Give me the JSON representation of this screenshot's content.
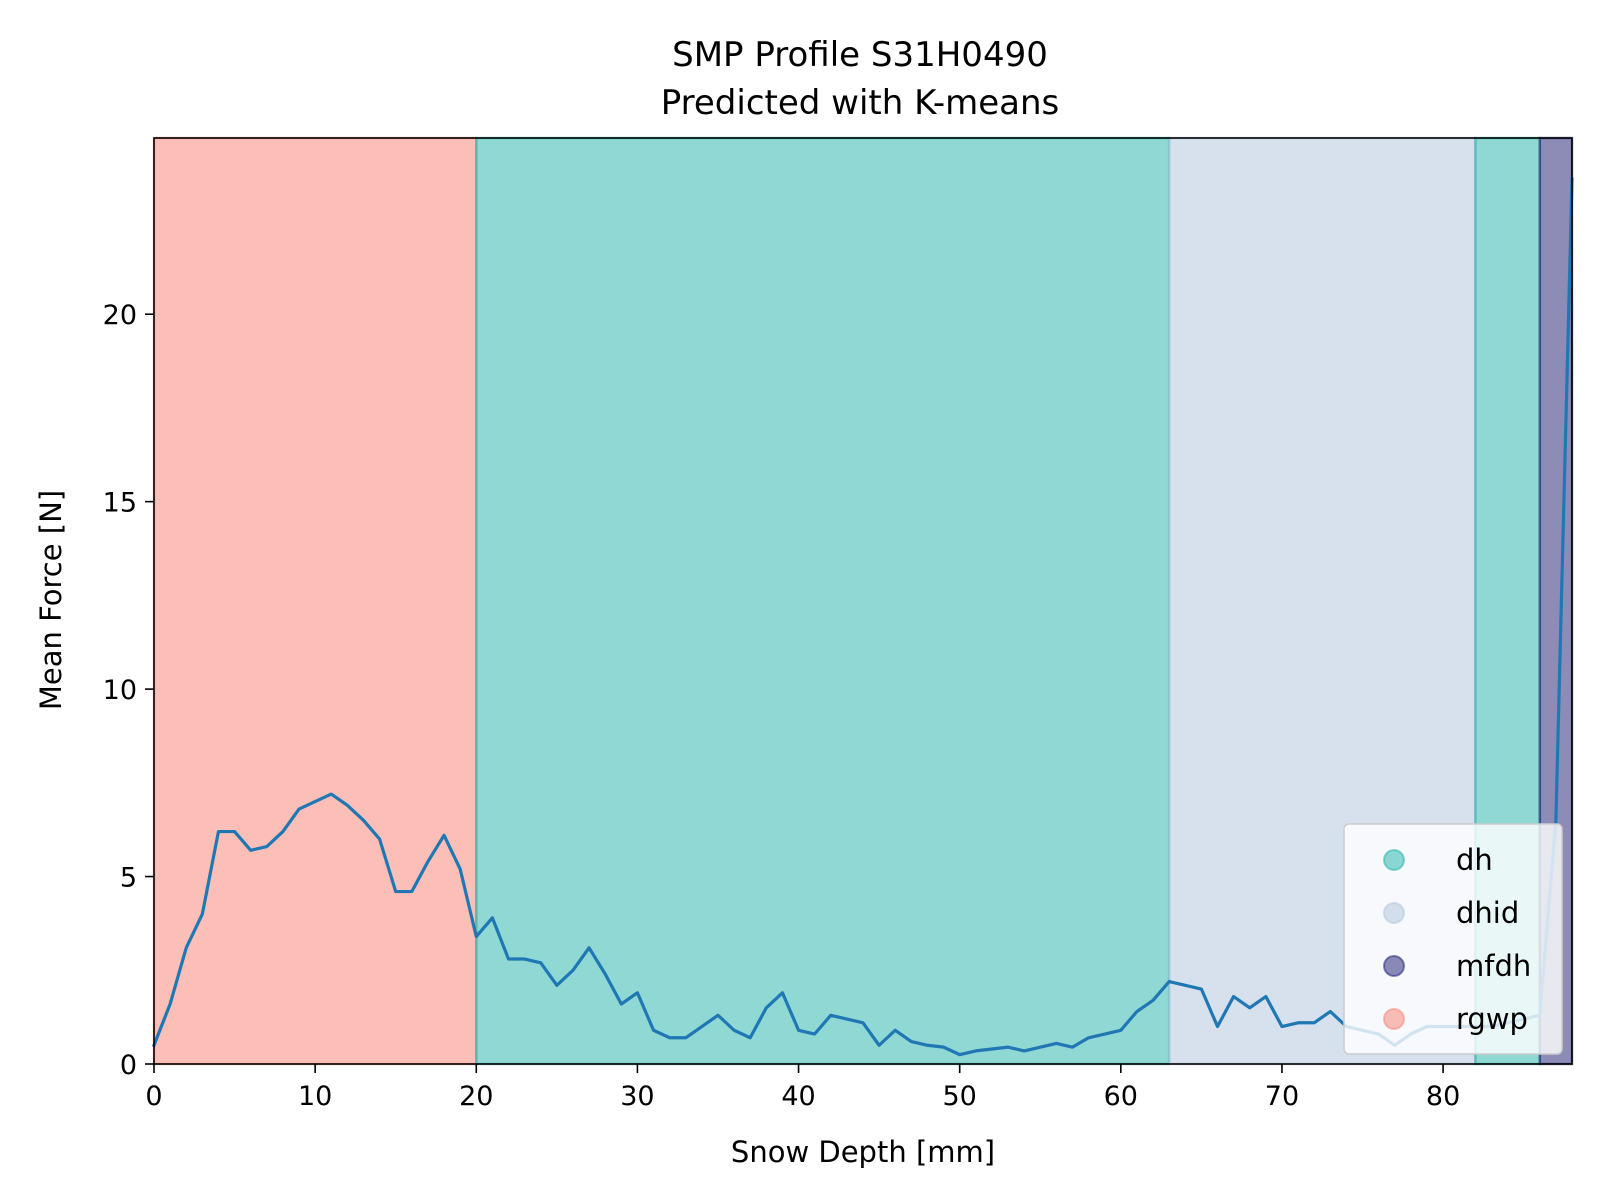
{
  "chart_data": {
    "type": "line",
    "title": "SMP Profile S31H0490",
    "subtitle": "Predicted with K-means",
    "xlabel": "Snow Depth [mm]",
    "ylabel": "Mean Force [N]",
    "xlim": [
      0,
      88
    ],
    "ylim": [
      0,
      24.7
    ],
    "xticks": [
      0,
      10,
      20,
      30,
      40,
      50,
      60,
      70,
      80
    ],
    "yticks": [
      0,
      5,
      10,
      15,
      20
    ],
    "grid": false,
    "legend_position": "bottom-right",
    "series": [
      {
        "color": "#1f77b4",
        "x": [
          0,
          1,
          2,
          3,
          4,
          5,
          6,
          7,
          8,
          9,
          10,
          11,
          12,
          13,
          14,
          15,
          16,
          17,
          18,
          19,
          20,
          21,
          22,
          23,
          24,
          25,
          26,
          27,
          28,
          29,
          30,
          31,
          32,
          33,
          34,
          35,
          36,
          37,
          38,
          39,
          40,
          41,
          42,
          43,
          44,
          45,
          46,
          47,
          48,
          49,
          50,
          51,
          52,
          53,
          54,
          55,
          56,
          57,
          58,
          59,
          60,
          61,
          62,
          63,
          64,
          65,
          66,
          67,
          68,
          69,
          70,
          71,
          72,
          73,
          74,
          75,
          76,
          77,
          78,
          79,
          80,
          81,
          82,
          83,
          84,
          85,
          86,
          87,
          88
        ],
        "y": [
          0.5,
          1.6,
          3.1,
          4.0,
          6.2,
          6.2,
          5.7,
          5.8,
          6.2,
          6.8,
          7.0,
          7.2,
          6.9,
          6.5,
          6.0,
          4.6,
          4.6,
          5.4,
          6.1,
          5.2,
          3.4,
          3.9,
          2.8,
          2.8,
          2.7,
          2.1,
          2.5,
          3.1,
          2.4,
          1.6,
          1.9,
          0.9,
          0.7,
          0.7,
          1.0,
          1.3,
          0.9,
          0.7,
          1.5,
          1.9,
          0.9,
          0.8,
          1.3,
          1.2,
          1.1,
          0.5,
          0.9,
          0.6,
          0.5,
          0.45,
          0.25,
          0.35,
          0.4,
          0.45,
          0.35,
          0.45,
          0.55,
          0.45,
          0.7,
          0.8,
          0.9,
          1.4,
          1.7,
          2.2,
          2.1,
          2.0,
          1.0,
          1.8,
          1.5,
          1.8,
          1.0,
          1.1,
          1.1,
          1.4,
          1.0,
          0.9,
          0.8,
          0.5,
          0.8,
          1.0,
          1.0,
          1.0,
          1.0,
          1.0,
          1.1,
          1.2,
          1.3,
          6.5,
          23.6
        ]
      }
    ],
    "regions": [
      {
        "label": "rgwp",
        "x0": 0,
        "x1": 20,
        "color": "#fa8072"
      },
      {
        "label": "dh",
        "x0": 20,
        "x1": 63,
        "color": "#20b2aa"
      },
      {
        "label": "dhid",
        "x0": 63,
        "x1": 82,
        "color": "#b0c4de"
      },
      {
        "label": "dh",
        "x0": 82,
        "x1": 86,
        "color": "#20b2aa"
      },
      {
        "label": "mfdh",
        "x0": 86,
        "x1": 88,
        "color": "#191970"
      }
    ],
    "legend": [
      {
        "label": "dh",
        "color": "#20b2aa"
      },
      {
        "label": "dhid",
        "color": "#b0c4de"
      },
      {
        "label": "mfdh",
        "color": "#191970"
      },
      {
        "label": "rgwp",
        "color": "#fa8072"
      }
    ]
  }
}
